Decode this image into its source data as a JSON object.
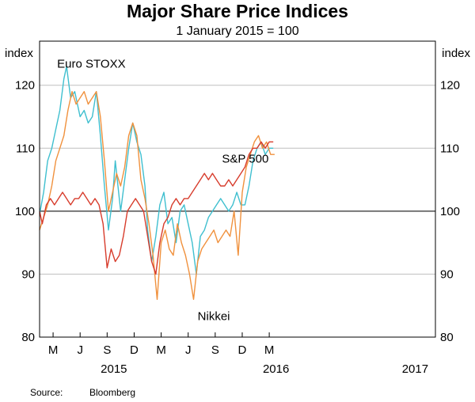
{
  "chart_data": {
    "type": "line",
    "title": "Major Share Price Indices",
    "subtitle": "1 January 2015 = 100",
    "ylabel_left": "index",
    "ylabel_right": "index",
    "ylim": [
      80,
      127
    ],
    "yticks": [
      80,
      90,
      100,
      110,
      120
    ],
    "baseline": 100,
    "xlim": [
      0,
      29.3
    ],
    "xticks": [
      {
        "pos": 1.0,
        "label": "M"
      },
      {
        "pos": 3.0,
        "label": "J"
      },
      {
        "pos": 5.0,
        "label": "S"
      },
      {
        "pos": 7.0,
        "label": "D"
      },
      {
        "pos": 9.0,
        "label": "M"
      },
      {
        "pos": 11.0,
        "label": "J"
      },
      {
        "pos": 13.0,
        "label": "S"
      },
      {
        "pos": 15.0,
        "label": "D"
      },
      {
        "pos": 17.0,
        "label": "M"
      }
    ],
    "years": [
      {
        "pos": 5.5,
        "label": "2015"
      },
      {
        "pos": 17.5,
        "label": "2016"
      },
      {
        "pos": 27.8,
        "label": "2017"
      }
    ],
    "series": [
      {
        "name": "Euro STOXX",
        "color": "#3fbfcf",
        "label_at": [
          1.3,
          122.8
        ],
        "x": [
          0,
          0.3,
          0.6,
          0.9,
          1.2,
          1.5,
          1.8,
          2.0,
          2.3,
          2.6,
          2.8,
          3.0,
          3.3,
          3.6,
          3.9,
          4.2,
          4.5,
          4.8,
          5.1,
          5.4,
          5.6,
          5.8,
          6.0,
          6.3,
          6.6,
          6.9,
          7.2,
          7.5,
          7.8,
          8.0,
          8.3,
          8.6,
          8.9,
          9.2,
          9.5,
          9.8,
          10.1,
          10.4,
          10.7,
          11.0,
          11.3,
          11.6,
          11.9,
          12.2,
          12.5,
          12.8,
          13.1,
          13.4,
          13.7,
          14.0,
          14.3,
          14.6,
          14.9,
          15.2,
          15.5,
          15.8,
          16.1,
          16.4,
          16.7,
          17.0,
          17.3
        ],
        "values": [
          99.5,
          103,
          108,
          110,
          113,
          116,
          121,
          123,
          118,
          119,
          117,
          115,
          116,
          114,
          115,
          119,
          112,
          104,
          97,
          102,
          108,
          104,
          100,
          105,
          110,
          114,
          111,
          109,
          104,
          97,
          92,
          96,
          101,
          103,
          98,
          99,
          95,
          100,
          101,
          98,
          95,
          90,
          96,
          97,
          99,
          100,
          101,
          102,
          101,
          100,
          101,
          103,
          101,
          101,
          104,
          108,
          110,
          111,
          109,
          110,
          110
        ]
      },
      {
        "name": "Nikkei",
        "color": "#f0913d",
        "label_at": [
          11.7,
          82.7
        ],
        "x": [
          0,
          0.3,
          0.6,
          0.9,
          1.2,
          1.5,
          1.8,
          2.1,
          2.4,
          2.7,
          3.0,
          3.3,
          3.6,
          3.9,
          4.2,
          4.5,
          4.8,
          5.1,
          5.4,
          5.7,
          6.0,
          6.3,
          6.6,
          6.9,
          7.2,
          7.5,
          7.8,
          8.1,
          8.4,
          8.7,
          9.0,
          9.3,
          9.6,
          9.9,
          10.2,
          10.5,
          10.8,
          11.1,
          11.4,
          11.7,
          12.0,
          12.3,
          12.6,
          12.9,
          13.2,
          13.5,
          13.8,
          14.1,
          14.4,
          14.7,
          15.0,
          15.3,
          15.6,
          15.9,
          16.2,
          16.5,
          16.8,
          17.1,
          17.4
        ],
        "values": [
          97,
          99,
          101,
          104,
          108,
          110,
          112,
          116,
          119,
          117,
          118,
          119,
          117,
          118,
          119,
          115,
          108,
          100,
          103,
          106,
          104,
          107,
          112,
          114,
          112,
          105,
          102,
          98,
          93,
          86,
          95,
          97,
          94,
          93,
          98,
          95,
          93,
          90,
          86,
          92,
          94,
          95,
          96,
          97,
          95,
          96,
          97,
          96,
          100,
          93,
          103,
          107,
          109,
          111,
          112,
          110,
          111,
          109,
          109
        ]
      },
      {
        "name": "S&P 500",
        "color": "#d73c2c",
        "label_at": [
          13.5,
          107.7
        ],
        "x": [
          0,
          0.2,
          0.5,
          0.8,
          1.1,
          1.4,
          1.7,
          2.0,
          2.3,
          2.6,
          2.9,
          3.2,
          3.5,
          3.8,
          4.1,
          4.4,
          4.7,
          5.0,
          5.3,
          5.6,
          5.9,
          6.2,
          6.5,
          6.8,
          7.1,
          7.4,
          7.7,
          8.0,
          8.3,
          8.6,
          8.9,
          9.2,
          9.5,
          9.8,
          10.1,
          10.4,
          10.7,
          11.0,
          11.3,
          11.6,
          11.9,
          12.2,
          12.5,
          12.8,
          13.1,
          13.4,
          13.7,
          14.0,
          14.3,
          14.6,
          14.9,
          15.2,
          15.5,
          15.8,
          16.1,
          16.4,
          16.7,
          17.0,
          17.3
        ],
        "values": [
          100,
          98,
          101,
          102,
          101,
          102,
          103,
          102,
          101,
          102,
          102,
          103,
          102,
          101,
          102,
          101,
          98,
          91,
          94,
          92,
          93,
          96,
          100,
          101,
          102,
          101,
          100,
          96,
          92,
          90,
          95,
          98,
          99,
          101,
          102,
          101,
          102,
          102,
          103,
          104,
          105,
          106,
          105,
          106,
          105,
          104,
          104,
          105,
          104,
          105,
          106,
          107,
          109,
          110,
          110,
          111,
          110,
          111,
          111
        ]
      }
    ]
  },
  "footer": {
    "source_label": "Source:",
    "source_value": "Bloomberg"
  }
}
